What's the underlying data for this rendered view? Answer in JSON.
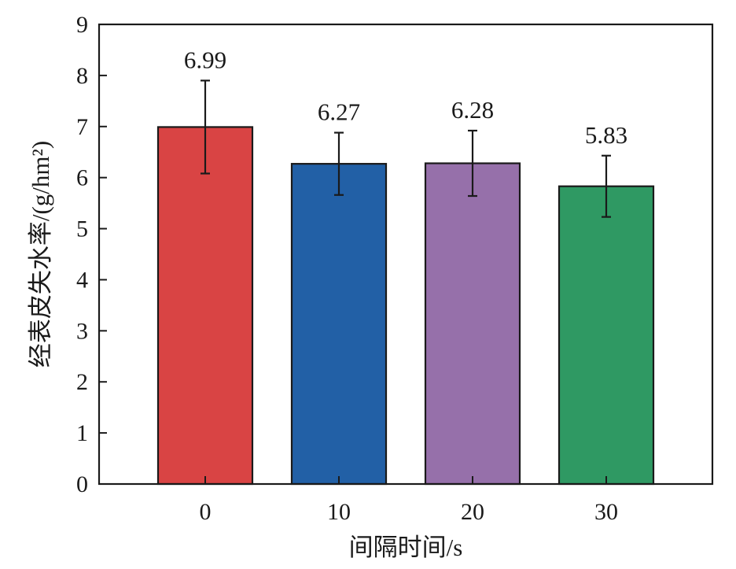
{
  "chart_data": {
    "type": "bar",
    "title": "",
    "xlabel": "间隔时间/s",
    "ylabel": "经表皮失水率/(g/hm²)",
    "categories": [
      "0",
      "10",
      "20",
      "30"
    ],
    "values": [
      6.99,
      6.27,
      6.28,
      5.83
    ],
    "data_labels": [
      "6.99",
      "6.27",
      "6.28",
      "5.83"
    ],
    "error": [
      0.91,
      0.61,
      0.64,
      0.6
    ],
    "colors": [
      "#d94444",
      "#2260a6",
      "#9670aa",
      "#2f9963"
    ],
    "ylim": [
      0,
      9
    ],
    "yticks": [
      "0",
      "1",
      "2",
      "3",
      "4",
      "5",
      "6",
      "7",
      "8",
      "9"
    ],
    "grid": false,
    "legend": "none"
  }
}
